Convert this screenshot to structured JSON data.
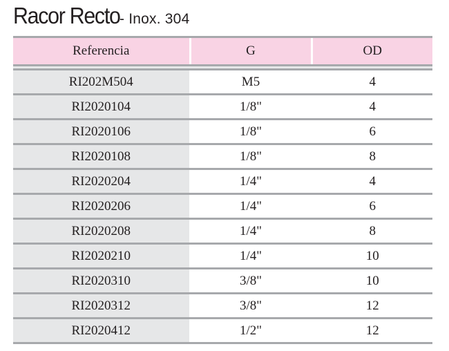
{
  "title": {
    "main": "Racor Recto",
    "sub": "- Inox. 304"
  },
  "table": {
    "headers": [
      "Referencia",
      "G",
      "OD"
    ],
    "rows": [
      [
        "RI202M504",
        "M5",
        "4"
      ],
      [
        "RI2020104",
        "1/8\"",
        "4"
      ],
      [
        "RI2020106",
        "1/8\"",
        "6"
      ],
      [
        "RI2020108",
        "1/8\"",
        "8"
      ],
      [
        "RI2020204",
        "1/4\"",
        "4"
      ],
      [
        "RI2020206",
        "1/4\"",
        "6"
      ],
      [
        "RI2020208",
        "1/4\"",
        "8"
      ],
      [
        "RI2020210",
        "1/4\"",
        "10"
      ],
      [
        "RI2020310",
        "3/8\"",
        "10"
      ],
      [
        "RI2020312",
        "3/8\"",
        "12"
      ],
      [
        "RI2020412",
        "1/2\"",
        "12"
      ]
    ]
  },
  "colors": {
    "header_background": "#f9d3e4",
    "reference_column_background": "#e6e7e8",
    "rule": "#a7a9ac",
    "text": "#231f20"
  }
}
